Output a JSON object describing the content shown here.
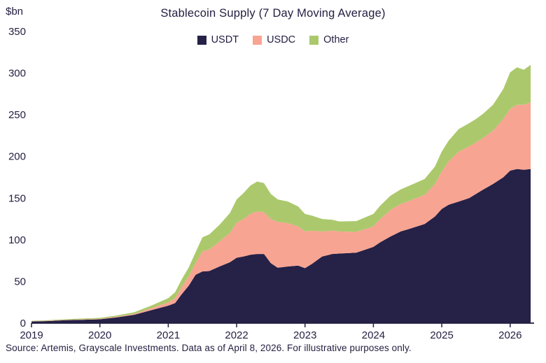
{
  "chart_data": {
    "type": "area",
    "stacked": true,
    "title": "Stablecoin Supply (7 Day Moving Average)",
    "y_unit": "$bn",
    "x_range": [
      2019,
      2026.35
    ],
    "y_range": [
      0,
      350
    ],
    "x_ticks": [
      2019,
      2020,
      2021,
      2022,
      2023,
      2024,
      2025,
      2026
    ],
    "y_ticks": [
      0,
      50,
      100,
      150,
      200,
      250,
      300,
      350
    ],
    "legend_position": "top",
    "grid": false,
    "text_color": "#221E41",
    "axis_color": "#221E41",
    "x": [
      2019.0,
      2019.25,
      2019.5,
      2019.75,
      2020.0,
      2020.25,
      2020.5,
      2020.75,
      2021.0,
      2021.1,
      2021.2,
      2021.3,
      2021.4,
      2021.5,
      2021.6,
      2021.75,
      2021.9,
      2022.0,
      2022.1,
      2022.2,
      2022.3,
      2022.4,
      2022.5,
      2022.6,
      2022.75,
      2022.9,
      2023.0,
      2023.1,
      2023.25,
      2023.4,
      2023.5,
      2023.75,
      2024.0,
      2024.1,
      2024.25,
      2024.4,
      2024.5,
      2024.75,
      2024.9,
      2025.0,
      2025.1,
      2025.25,
      2025.4,
      2025.5,
      2025.6,
      2025.75,
      2025.9,
      2026.0,
      2026.1,
      2026.2,
      2026.3
    ],
    "series": [
      {
        "name": "USDT",
        "color": "#252147",
        "values": [
          2,
          2.5,
          3.5,
          4,
          4.6,
          7,
          10,
          15.5,
          21,
          24,
          35,
          45,
          58,
          62,
          62.5,
          68,
          73,
          78.5,
          80,
          82,
          83,
          83,
          72,
          66.5,
          68,
          69,
          66,
          71,
          80,
          83,
          83.5,
          84.5,
          91.5,
          97,
          104,
          110,
          112.5,
          119,
          128,
          137,
          142,
          146,
          150,
          155,
          160,
          167,
          175,
          183,
          185,
          184,
          185
        ]
      },
      {
        "name": "USDC",
        "color": "#F8A493",
        "values": [
          0.3,
          0.4,
          0.4,
          0.5,
          0.5,
          0.7,
          1,
          2.5,
          4,
          6,
          9,
          11,
          14,
          24,
          26,
          30,
          35,
          42,
          45,
          49,
          51,
          50,
          53,
          55,
          52,
          47,
          44,
          40,
          30,
          28,
          26.5,
          25,
          24.5,
          28,
          32,
          33,
          33.5,
          35,
          39,
          45,
          52,
          60,
          62,
          62,
          62,
          64,
          70,
          74,
          77,
          78,
          80
        ]
      },
      {
        "name": "Other",
        "color": "#ABC96C",
        "values": [
          0.5,
          0.6,
          0.8,
          1,
          1.2,
          1.5,
          2,
          3,
          5,
          7,
          9,
          11,
          13,
          17,
          18,
          20,
          24,
          28,
          31,
          34,
          36,
          35,
          30,
          27,
          26,
          24,
          21,
          18,
          15,
          13,
          12,
          13,
          15,
          16,
          17,
          17.5,
          18,
          19,
          21,
          24,
          25,
          27,
          28,
          28,
          29,
          31,
          36,
          44,
          45,
          42,
          45
        ]
      }
    ]
  },
  "footer": {
    "source_text": "Source: Artemis, Grayscale Investments. Data as of April 8, 2026. For illustrative purposes only."
  }
}
